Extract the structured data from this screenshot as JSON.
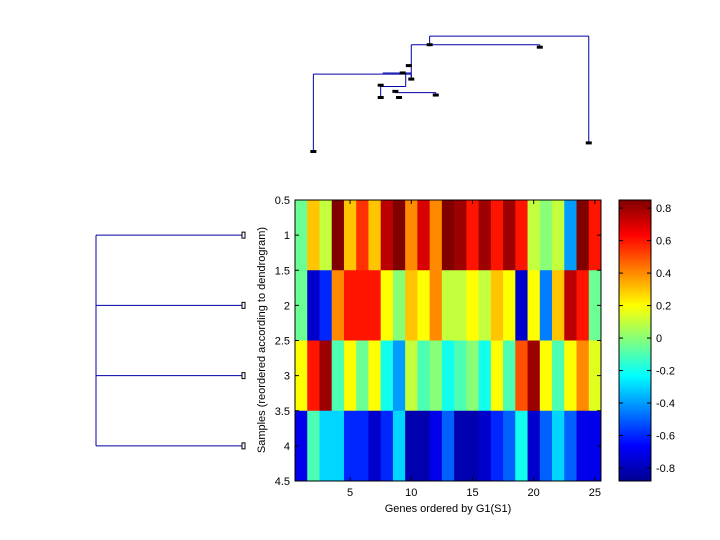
{
  "chart_data": {
    "type": "heatmap",
    "xlabel": "Genes ordered by G1(S1)",
    "ylabel": "Samples (reordered according to dendrogram)",
    "x_ticks": [
      5,
      10,
      15,
      20,
      25
    ],
    "y_ticks": [
      0.5,
      1,
      1.5,
      2,
      2.5,
      3,
      3.5,
      4,
      4.5
    ],
    "xlim": [
      0.5,
      25.5
    ],
    "ylim": [
      0.5,
      4.5
    ],
    "colormap": "jet",
    "color_limits": [
      -0.88,
      0.85
    ],
    "colorbar_ticks": [
      0.8,
      0.6,
      0.4,
      0.2,
      0,
      -0.2,
      -0.4,
      -0.6,
      -0.8
    ],
    "colorbar_tick_labels": [
      "0.8",
      "0.6",
      "0.4",
      "0.2",
      "0",
      "-0.2",
      "-0.4",
      "-0.6",
      "-0.8"
    ],
    "matrix": [
      [
        -0.05,
        0.3,
        0.1,
        0.85,
        0.3,
        0.55,
        0.3,
        0.75,
        0.85,
        0.4,
        0.7,
        0.4,
        0.85,
        0.8,
        0.6,
        0.8,
        0.6,
        0.8,
        0.6,
        0.1,
        0.0,
        0.1,
        -0.4,
        0.85,
        0.6
      ],
      [
        -0.05,
        -0.75,
        -0.6,
        0.4,
        0.6,
        0.6,
        0.6,
        0.2,
        0.0,
        0.3,
        0.2,
        0.4,
        0.1,
        0.1,
        0.2,
        0.1,
        0.3,
        0.2,
        -0.75,
        0.2,
        -0.45,
        0.3,
        0.75,
        0.6,
        -0.05
      ],
      [
        0.2,
        0.6,
        0.8,
        -0.1,
        0.2,
        -0.05,
        0.2,
        -0.2,
        -0.4,
        0.1,
        -0.1,
        0.0,
        -0.2,
        -0.1,
        0.0,
        -0.2,
        0.2,
        -0.1,
        0.5,
        0.8,
        0.2,
        -0.1,
        0.2,
        0.4,
        0.15
      ],
      [
        -0.7,
        -0.1,
        -0.3,
        -0.3,
        -0.6,
        -0.6,
        -0.75,
        -0.6,
        -0.3,
        -0.8,
        -0.8,
        -0.7,
        -0.5,
        -0.8,
        -0.8,
        -0.75,
        -0.6,
        -0.5,
        -0.2,
        -0.75,
        -0.5,
        -0.3,
        -0.5,
        -0.7,
        -0.7
      ]
    ],
    "row_dendrogram": {
      "leaves": [
        1,
        2,
        3,
        4
      ],
      "merges": [
        {
          "left": 1,
          "right": 2,
          "height": 1.0
        },
        {
          "left": "m0",
          "right": 3,
          "height": 1.0
        },
        {
          "left": "m1",
          "right": 4,
          "height": 1.0
        }
      ]
    },
    "column_dendrogram": {
      "note_free": true,
      "nodes": [
        {
          "id": "a",
          "x": 2.0,
          "y": 1.1
        },
        {
          "id": "b",
          "x": 7.5,
          "y": 5.5
        },
        {
          "id": "c",
          "x": 7.5,
          "y": 6.5
        },
        {
          "id": "d",
          "x": 9.0,
          "y": 5.5
        },
        {
          "id": "e",
          "x": 10.0,
          "y": 7.0
        },
        {
          "id": "f",
          "x": 12.0,
          "y": 5.7
        },
        {
          "id": "g",
          "x": 8.7,
          "y": 6.0
        },
        {
          "id": "h",
          "x": 9.3,
          "y": 7.5
        },
        {
          "id": "i",
          "x": 9.8,
          "y": 8.1
        },
        {
          "id": "j",
          "x": 11.5,
          "y": 9.8
        },
        {
          "id": "k",
          "x": 20.5,
          "y": 9.6
        },
        {
          "id": "l",
          "x": 24.5,
          "y": 1.8
        }
      ],
      "links": [
        [
          "a",
          "m1",
          8.2
        ],
        [
          "m1",
          "i",
          8.2
        ],
        [
          "b",
          "m2",
          6.2
        ],
        [
          "d",
          "m2",
          6.2
        ],
        [
          "f",
          "m3",
          5.9
        ],
        [
          "g",
          "m3",
          5.9
        ]
      ]
    }
  }
}
